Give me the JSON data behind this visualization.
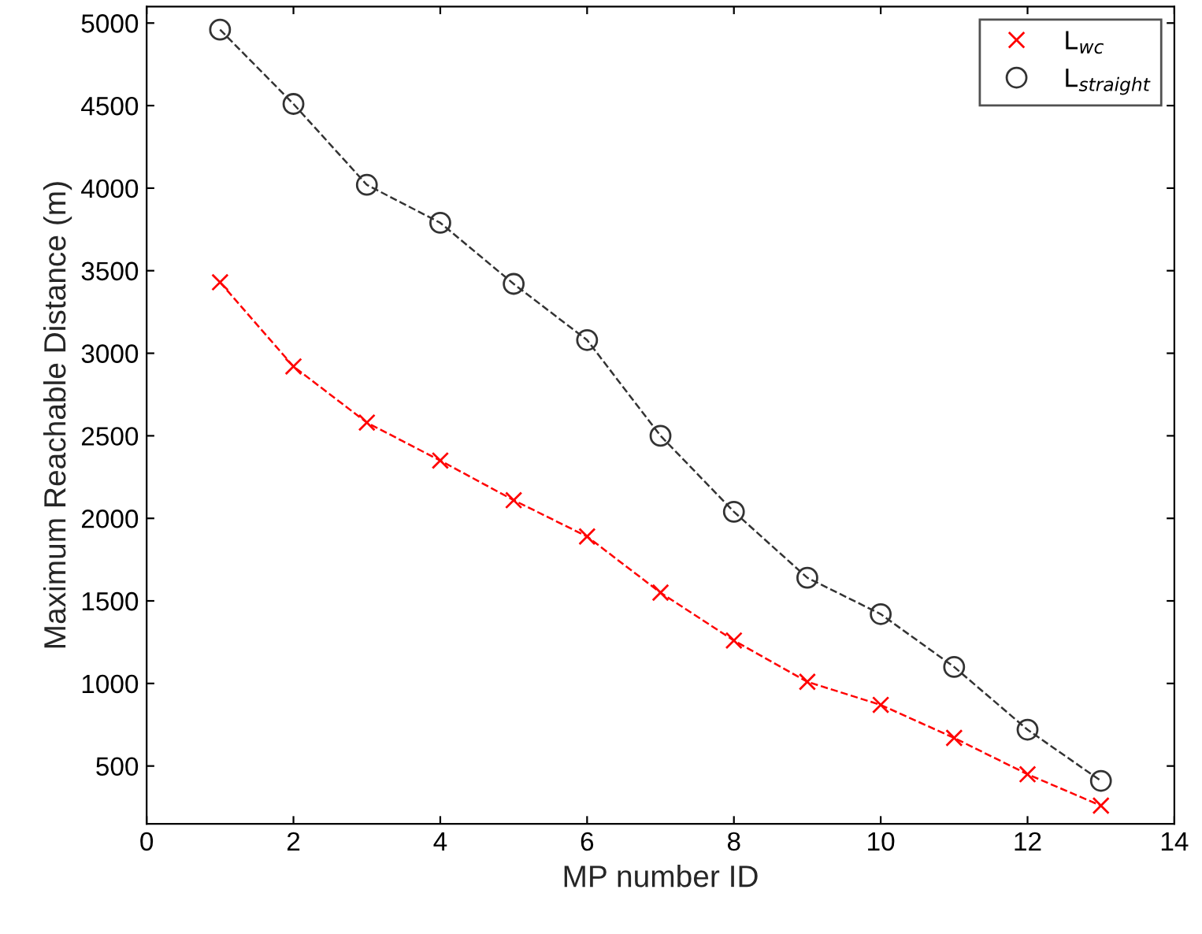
{
  "chart_data": {
    "type": "line",
    "xlabel": "MP number ID",
    "ylabel": "Maximum Reachable Distance (m)",
    "x": [
      1,
      2,
      3,
      4,
      5,
      6,
      7,
      8,
      9,
      10,
      11,
      12,
      13
    ],
    "series": [
      {
        "name": "L$_{wc}$",
        "color": "#ff0000",
        "marker": "cross",
        "line_style": "dashed",
        "values": [
          3430,
          2920,
          2580,
          2350,
          2110,
          1890,
          1550,
          1260,
          1010,
          870,
          670,
          450,
          260
        ]
      },
      {
        "name": "L$_{straight}$",
        "color": "#333333",
        "marker": "circle",
        "line_style": "dashed",
        "values": [
          4960,
          4510,
          4020,
          3790,
          3420,
          3080,
          2500,
          2040,
          1640,
          1420,
          1100,
          720,
          410
        ]
      }
    ],
    "xlim": [
      0,
      14
    ],
    "xticks": [
      0,
      2,
      4,
      6,
      8,
      10,
      12,
      14
    ],
    "ylim": [
      150,
      5100
    ],
    "yticks": [
      500,
      1000,
      1500,
      2000,
      2500,
      3000,
      3500,
      4000,
      4500,
      5000
    ],
    "grid": false,
    "legend": "top right"
  }
}
